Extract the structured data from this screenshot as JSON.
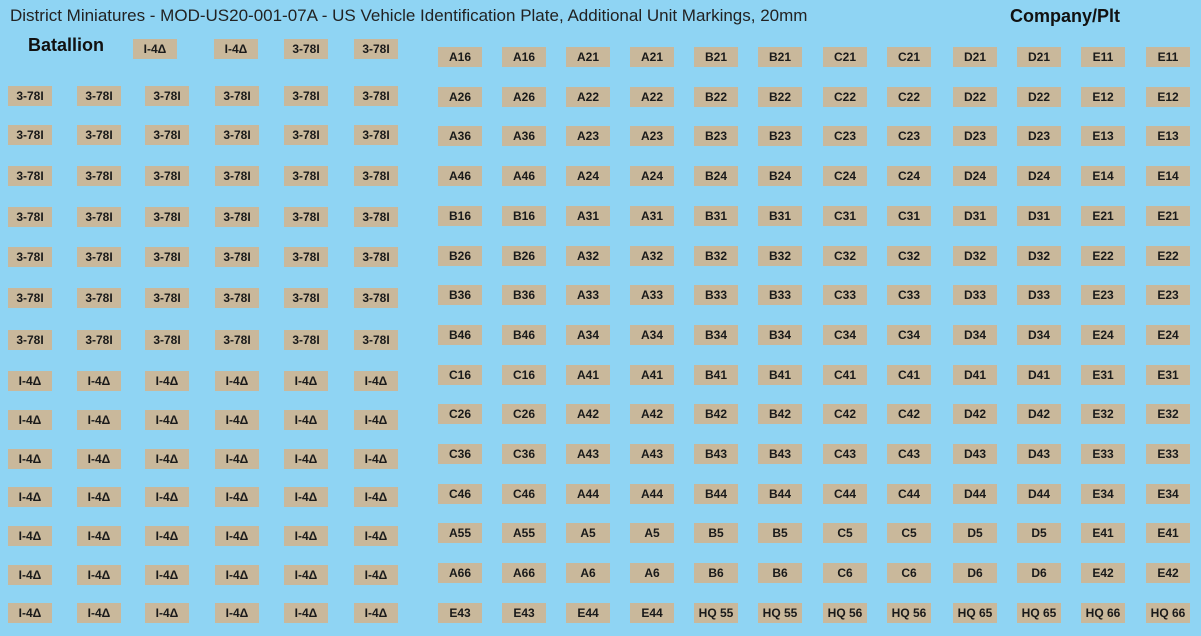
{
  "header": {
    "title": "District Miniatures - MOD-US20-001-07A - US Vehicle Identification Plate, Additional Unit Markings, 20mm"
  },
  "batallion": {
    "label": "Batallion",
    "top_row": [
      "I-4Δ",
      "I-4Δ",
      "3-78I",
      "3-78I"
    ],
    "rows": [
      [
        "3-78I",
        "3-78I",
        "3-78I",
        "3-78I",
        "3-78I",
        "3-78I"
      ],
      [
        "3-78I",
        "3-78I",
        "3-78I",
        "3-78I",
        "3-78I",
        "3-78I"
      ],
      [
        "3-78I",
        "3-78I",
        "3-78I",
        "3-78I",
        "3-78I",
        "3-78I"
      ],
      [
        "3-78I",
        "3-78I",
        "3-78I",
        "3-78I",
        "3-78I",
        "3-78I"
      ],
      [
        "3-78I",
        "3-78I",
        "3-78I",
        "3-78I",
        "3-78I",
        "3-78I"
      ],
      [
        "3-78I",
        "3-78I",
        "3-78I",
        "3-78I",
        "3-78I",
        "3-78I"
      ],
      [
        "3-78I",
        "3-78I",
        "3-78I",
        "3-78I",
        "3-78I",
        "3-78I"
      ],
      [
        "I-4Δ",
        "I-4Δ",
        "I-4Δ",
        "I-4Δ",
        "I-4Δ",
        "I-4Δ"
      ],
      [
        "I-4Δ",
        "I-4Δ",
        "I-4Δ",
        "I-4Δ",
        "I-4Δ",
        "I-4Δ"
      ],
      [
        "I-4Δ",
        "I-4Δ",
        "I-4Δ",
        "I-4Δ",
        "I-4Δ",
        "I-4Δ"
      ],
      [
        "I-4Δ",
        "I-4Δ",
        "I-4Δ",
        "I-4Δ",
        "I-4Δ",
        "I-4Δ"
      ],
      [
        "I-4Δ",
        "I-4Δ",
        "I-4Δ",
        "I-4Δ",
        "I-4Δ",
        "I-4Δ"
      ],
      [
        "I-4Δ",
        "I-4Δ",
        "I-4Δ",
        "I-4Δ",
        "I-4Δ",
        "I-4Δ"
      ],
      [
        "I-4Δ",
        "I-4Δ",
        "I-4Δ",
        "I-4Δ",
        "I-4Δ",
        "I-4Δ"
      ]
    ]
  },
  "company": {
    "label": "Company/Plt",
    "rows": [
      [
        "A16",
        "A16",
        "A21",
        "A21",
        "B21",
        "B21",
        "C21",
        "C21",
        "D21",
        "D21",
        "E11",
        "E11"
      ],
      [
        "A26",
        "A26",
        "A22",
        "A22",
        "B22",
        "B22",
        "C22",
        "C22",
        "D22",
        "D22",
        "E12",
        "E12"
      ],
      [
        "A36",
        "A36",
        "A23",
        "A23",
        "B23",
        "B23",
        "C23",
        "C23",
        "D23",
        "D23",
        "E13",
        "E13"
      ],
      [
        "A46",
        "A46",
        "A24",
        "A24",
        "B24",
        "B24",
        "C24",
        "C24",
        "D24",
        "D24",
        "E14",
        "E14"
      ],
      [
        "B16",
        "B16",
        "A31",
        "A31",
        "B31",
        "B31",
        "C31",
        "C31",
        "D31",
        "D31",
        "E21",
        "E21"
      ],
      [
        "B26",
        "B26",
        "A32",
        "A32",
        "B32",
        "B32",
        "C32",
        "C32",
        "D32",
        "D32",
        "E22",
        "E22"
      ],
      [
        "B36",
        "B36",
        "A33",
        "A33",
        "B33",
        "B33",
        "C33",
        "C33",
        "D33",
        "D33",
        "E23",
        "E23"
      ],
      [
        "B46",
        "B46",
        "A34",
        "A34",
        "B34",
        "B34",
        "C34",
        "C34",
        "D34",
        "D34",
        "E24",
        "E24"
      ],
      [
        "C16",
        "C16",
        "A41",
        "A41",
        "B41",
        "B41",
        "C41",
        "C41",
        "D41",
        "D41",
        "E31",
        "E31"
      ],
      [
        "C26",
        "C26",
        "A42",
        "A42",
        "B42",
        "B42",
        "C42",
        "C42",
        "D42",
        "D42",
        "E32",
        "E32"
      ],
      [
        "C36",
        "C36",
        "A43",
        "A43",
        "B43",
        "B43",
        "C43",
        "C43",
        "D43",
        "D43",
        "E33",
        "E33"
      ],
      [
        "C46",
        "C46",
        "A44",
        "A44",
        "B44",
        "B44",
        "C44",
        "C44",
        "D44",
        "D44",
        "E34",
        "E34"
      ],
      [
        "A55",
        "A55",
        "A5",
        "A5",
        "B5",
        "B5",
        "C5",
        "C5",
        "D5",
        "D5",
        "E41",
        "E41"
      ],
      [
        "A66",
        "A66",
        "A6",
        "A6",
        "B6",
        "B6",
        "C6",
        "C6",
        "D6",
        "D6",
        "E42",
        "E42"
      ],
      [
        "E43",
        "E43",
        "E44",
        "E44",
        "HQ 55",
        "HQ 55",
        "HQ 56",
        "HQ 56",
        "HQ 65",
        "HQ 65",
        "HQ 66",
        "HQ 66"
      ]
    ]
  }
}
